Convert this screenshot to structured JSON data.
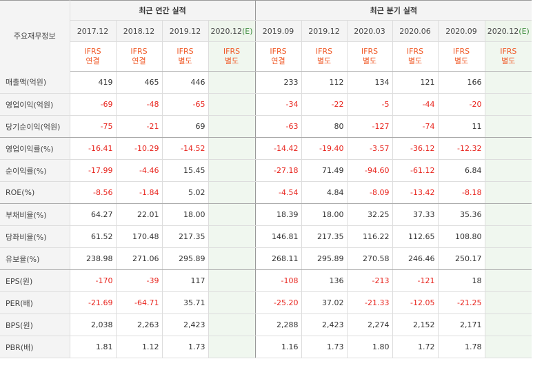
{
  "header": {
    "corner_label": "주요재무정보",
    "annual_group": "최근 연간 실적",
    "quarter_group": "최근 분기 실적"
  },
  "periods": [
    {
      "label": "2017.12",
      "est": "",
      "ifrs_1": "IFRS",
      "ifrs_2": "연결"
    },
    {
      "label": "2018.12",
      "est": "",
      "ifrs_1": "IFRS",
      "ifrs_2": "연결"
    },
    {
      "label": "2019.12",
      "est": "",
      "ifrs_1": "IFRS",
      "ifrs_2": "별도"
    },
    {
      "label": "2020.12",
      "est": "(E)",
      "ifrs_1": "IFRS",
      "ifrs_2": "별도"
    },
    {
      "label": "2019.09",
      "est": "",
      "ifrs_1": "IFRS",
      "ifrs_2": "연결"
    },
    {
      "label": "2019.12",
      "est": "",
      "ifrs_1": "IFRS",
      "ifrs_2": "별도"
    },
    {
      "label": "2020.03",
      "est": "",
      "ifrs_1": "IFRS",
      "ifrs_2": "별도"
    },
    {
      "label": "2020.06",
      "est": "",
      "ifrs_1": "IFRS",
      "ifrs_2": "별도"
    },
    {
      "label": "2020.09",
      "est": "",
      "ifrs_1": "IFRS",
      "ifrs_2": "별도"
    },
    {
      "label": "2020.12",
      "est": "(E)",
      "ifrs_1": "IFRS",
      "ifrs_2": "별도"
    }
  ],
  "rows": [
    {
      "label": "매출액(억원)",
      "values": [
        "419",
        "465",
        "446",
        "",
        "233",
        "112",
        "134",
        "121",
        "166",
        ""
      ]
    },
    {
      "label": "영업이익(억원)",
      "values": [
        "-69",
        "-48",
        "-65",
        "",
        "-34",
        "-22",
        "-5",
        "-44",
        "-20",
        ""
      ]
    },
    {
      "label": "당기순이익(억원)",
      "values": [
        "-75",
        "-21",
        "69",
        "",
        "-63",
        "80",
        "-127",
        "-74",
        "11",
        ""
      ]
    },
    {
      "label": "영업이익률(%)",
      "values": [
        "-16.41",
        "-10.29",
        "-14.52",
        "",
        "-14.42",
        "-19.40",
        "-3.57",
        "-36.12",
        "-12.32",
        ""
      ]
    },
    {
      "label": "순이익률(%)",
      "values": [
        "-17.99",
        "-4.46",
        "15.45",
        "",
        "-27.18",
        "71.49",
        "-94.60",
        "-61.12",
        "6.84",
        ""
      ]
    },
    {
      "label": "ROE(%)",
      "values": [
        "-8.56",
        "-1.84",
        "5.02",
        "",
        "-4.54",
        "4.84",
        "-8.09",
        "-13.42",
        "-8.18",
        ""
      ]
    },
    {
      "label": "부채비율(%)",
      "values": [
        "64.27",
        "22.01",
        "18.00",
        "",
        "18.39",
        "18.00",
        "32.25",
        "37.33",
        "35.36",
        ""
      ]
    },
    {
      "label": "당좌비율(%)",
      "values": [
        "61.52",
        "170.48",
        "217.35",
        "",
        "146.81",
        "217.35",
        "116.22",
        "112.65",
        "108.80",
        ""
      ]
    },
    {
      "label": "유보율(%)",
      "values": [
        "238.98",
        "271.06",
        "295.89",
        "",
        "268.11",
        "295.89",
        "270.58",
        "246.46",
        "250.17",
        ""
      ]
    },
    {
      "label": "EPS(원)",
      "values": [
        "-170",
        "-39",
        "117",
        "",
        "-108",
        "136",
        "-213",
        "-121",
        "18",
        ""
      ]
    },
    {
      "label": "PER(배)",
      "values": [
        "-21.69",
        "-64.71",
        "35.71",
        "",
        "-25.20",
        "37.02",
        "-21.33",
        "-12.05",
        "-21.25",
        ""
      ]
    },
    {
      "label": "BPS(원)",
      "values": [
        "2,038",
        "2,263",
        "2,423",
        "",
        "2,288",
        "2,423",
        "2,274",
        "2,152",
        "2,171",
        ""
      ]
    },
    {
      "label": "PBR(배)",
      "values": [
        "1.81",
        "1.12",
        "1.73",
        "",
        "1.16",
        "1.73",
        "1.80",
        "1.72",
        "1.78",
        ""
      ]
    }
  ],
  "colors": {
    "negative": "#e8231c",
    "ifrs": "#f05a28",
    "estimate_bg": "#f0f7ef",
    "estimate_label": "#3c8c3c"
  }
}
